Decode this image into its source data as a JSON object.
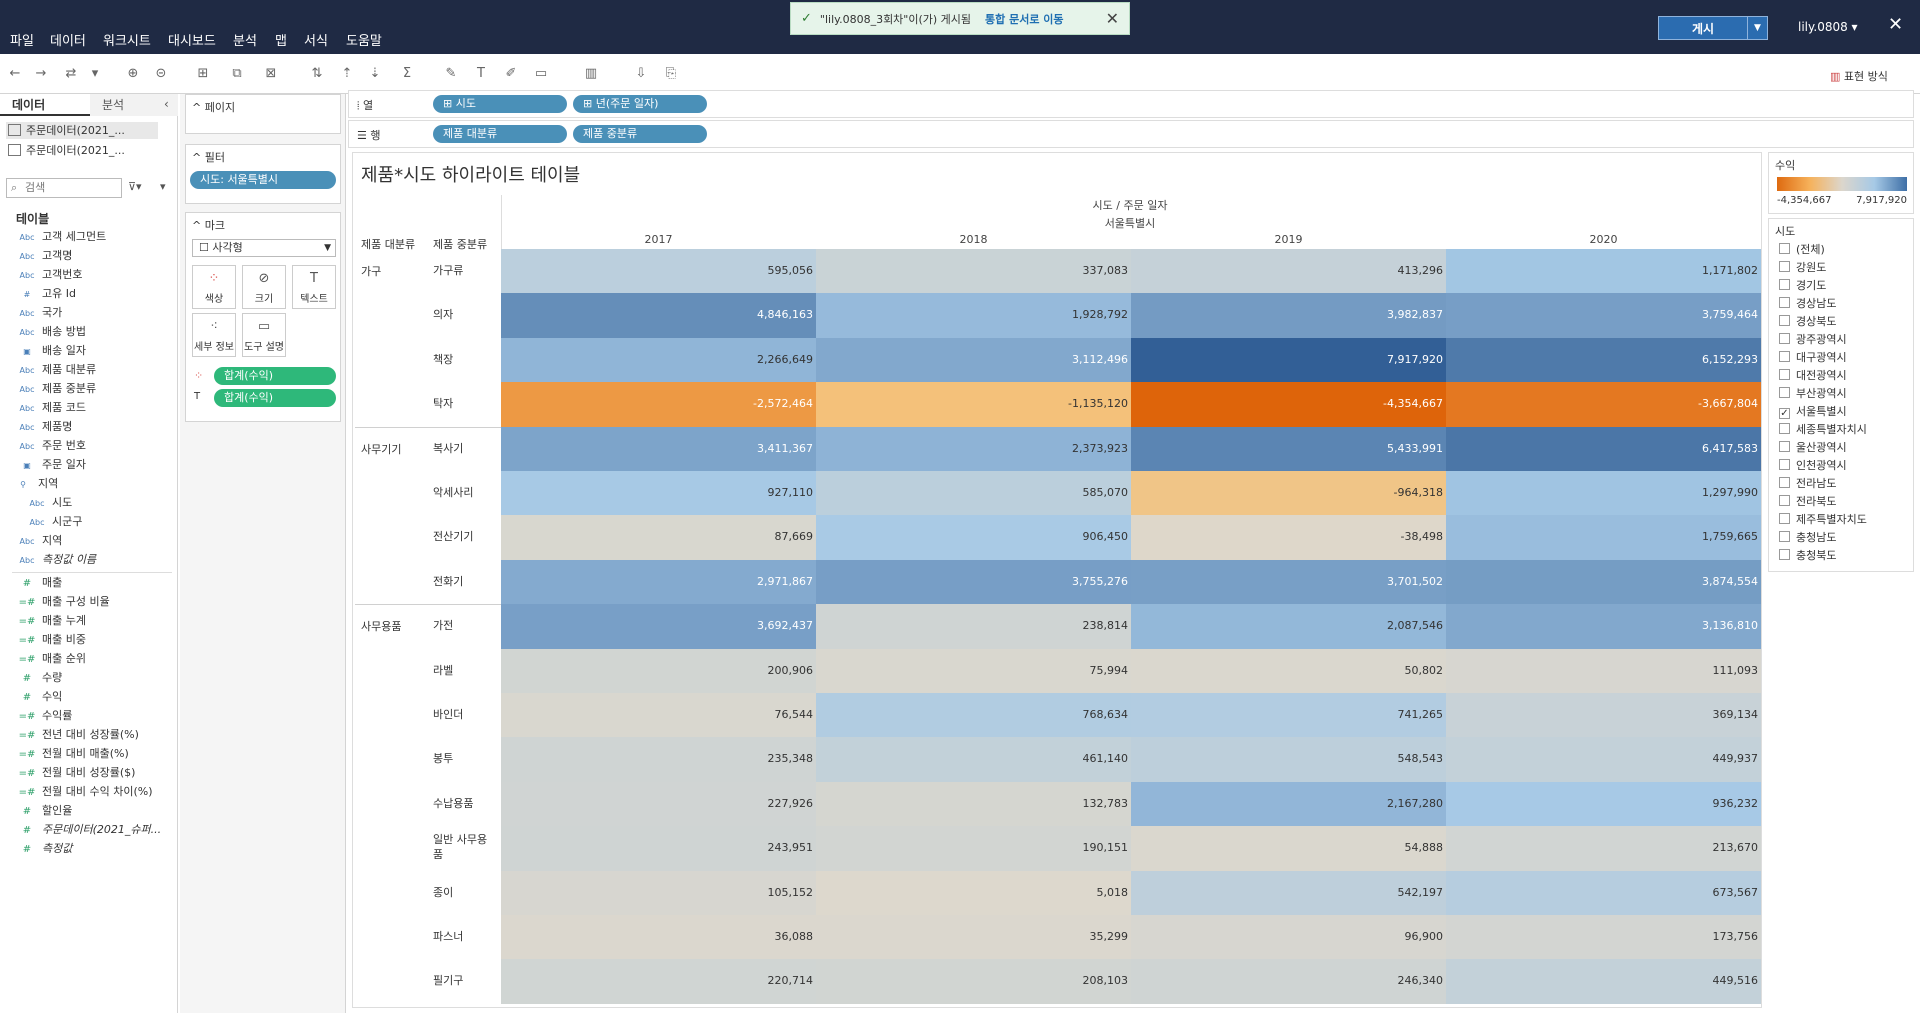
{
  "menus": [
    "파일",
    "데이터",
    "워크시트",
    "대시보드",
    "분석",
    "맵",
    "서식",
    "도움말"
  ],
  "toast": {
    "message": "\"lily.0808_3회차\"이(가) 게시됨",
    "link": "통합 문서로 이동"
  },
  "publish_label": "게시",
  "user_label": "lily.0808 ▾",
  "show_me_label": "표현 방식",
  "datapane": {
    "tab_data": "데이터",
    "tab_analysis": "분석",
    "sources": [
      "주문데이터(2021_...",
      "주문데이터(2021_..."
    ],
    "search_placeholder": "검색",
    "tables_label": "테이블",
    "dimensions": [
      {
        "type": "Abc",
        "name": "고객 세그먼트"
      },
      {
        "type": "Abc",
        "name": "고객명"
      },
      {
        "type": "Abc",
        "name": "고객번호"
      },
      {
        "type": "#",
        "name": "고유 Id"
      },
      {
        "type": "Abc",
        "name": "국가"
      },
      {
        "type": "Abc",
        "name": "배송 방법"
      },
      {
        "type": "▣",
        "name": "배송 일자"
      },
      {
        "type": "Abc",
        "name": "제품 대분류"
      },
      {
        "type": "Abc",
        "name": "제품 중분류"
      },
      {
        "type": "Abc",
        "name": "제품 코드"
      },
      {
        "type": "Abc",
        "name": "제품명"
      },
      {
        "type": "Abc",
        "name": "주문 번호"
      },
      {
        "type": "▣",
        "name": "주문 일자"
      },
      {
        "type": "⚲",
        "name": "지역"
      },
      {
        "type": "Abc",
        "name": "시도"
      },
      {
        "type": "Abc",
        "name": "시군구"
      },
      {
        "type": "Abc",
        "name": "지역"
      },
      {
        "type": "Abc",
        "name": "측정값 이름"
      }
    ],
    "measures": [
      {
        "type": "#",
        "name": "매출"
      },
      {
        "type": "=#",
        "name": "매출 구성 비율"
      },
      {
        "type": "=#",
        "name": "매출 누계"
      },
      {
        "type": "=#",
        "name": "매출 비중"
      },
      {
        "type": "=#",
        "name": "매출 순위"
      },
      {
        "type": "#",
        "name": "수량"
      },
      {
        "type": "#",
        "name": "수익"
      },
      {
        "type": "=#",
        "name": "수익률"
      },
      {
        "type": "=#",
        "name": "전년 대비 성장률(%)"
      },
      {
        "type": "=#",
        "name": "전월 대비 매출(%)"
      },
      {
        "type": "=#",
        "name": "전월 대비 성장률($)"
      },
      {
        "type": "=#",
        "name": "전월 대비 수익 차이(%)"
      },
      {
        "type": "#",
        "name": "할인율"
      },
      {
        "type": "#",
        "name": "주문데이터(2021_슈퍼..."
      },
      {
        "type": "#",
        "name": "측정값"
      }
    ]
  },
  "shelves": {
    "pages_label": "페이지",
    "filters_label": "필터",
    "filter_pill": "시도: 서울특별시",
    "marks_label": "마크",
    "mark_type": "사각형",
    "mark_buttons": [
      "색상",
      "크기",
      "텍스트",
      "세부 정보",
      "도구 설명"
    ],
    "mark_pills": [
      "합계(수익)",
      "합계(수익)"
    ],
    "columns_label": "열",
    "rows_label": "행",
    "column_pills": [
      "시도",
      "년(주문 일자)"
    ],
    "row_pills": [
      "제품 대분류",
      "제품 중분류"
    ]
  },
  "view": {
    "title": "제품*시도 하이라이트 테이블",
    "header_top": "시도 / 주문 일자",
    "header_region": "서울특별시",
    "row_header_1": "제품 대분류",
    "row_header_2": "제품 중분류",
    "years": [
      "2017",
      "2018",
      "2019",
      "2020"
    ]
  },
  "chart_data": {
    "type": "table",
    "title": "제품*시도 하이라이트 테이블",
    "columns": [
      "2017",
      "2018",
      "2019",
      "2020"
    ],
    "groups": [
      {
        "name": "가구",
        "rows": [
          {
            "sub": "가구류",
            "values": [
              595056,
              337083,
              413296,
              1171802
            ]
          },
          {
            "sub": "의자",
            "values": [
              4846163,
              1928792,
              3982837,
              3759464
            ]
          },
          {
            "sub": "책장",
            "values": [
              2266649,
              3112496,
              7917920,
              6152293
            ]
          },
          {
            "sub": "탁자",
            "values": [
              -2572464,
              -1135120,
              -4354667,
              -3667804
            ]
          }
        ]
      },
      {
        "name": "사무기기",
        "rows": [
          {
            "sub": "복사기",
            "values": [
              3411367,
              2373923,
              5433991,
              6417583
            ]
          },
          {
            "sub": "악세사리",
            "values": [
              927110,
              585070,
              -964318,
              1297990
            ]
          },
          {
            "sub": "전산기기",
            "values": [
              87669,
              906450,
              -38498,
              1759665
            ]
          },
          {
            "sub": "전화기",
            "values": [
              2971867,
              3755276,
              3701502,
              3874554
            ]
          }
        ]
      },
      {
        "name": "사무용품",
        "rows": [
          {
            "sub": "가전",
            "values": [
              3692437,
              238814,
              2087546,
              3136810
            ]
          },
          {
            "sub": "라벨",
            "values": [
              200906,
              75994,
              50802,
              111093
            ]
          },
          {
            "sub": "바인더",
            "values": [
              76544,
              768634,
              741265,
              369134
            ]
          },
          {
            "sub": "봉투",
            "values": [
              235348,
              461140,
              548543,
              449937
            ]
          },
          {
            "sub": "수납용품",
            "values": [
              227926,
              132783,
              2167280,
              936232
            ]
          },
          {
            "sub": "일반 사무용품",
            "values": [
              243951,
              190151,
              54888,
              213670
            ]
          },
          {
            "sub": "종이",
            "values": [
              105152,
              5018,
              542197,
              673567
            ]
          },
          {
            "sub": "파스너",
            "values": [
              36088,
              35299,
              96900,
              173756
            ]
          },
          {
            "sub": "필기구",
            "values": [
              220714,
              208103,
              246340,
              449516
            ]
          }
        ]
      }
    ],
    "color_min": -4354667,
    "color_max": 7917920
  },
  "legend": {
    "title": "수익",
    "min_label": "-4,354,667",
    "max_label": "7,917,920"
  },
  "filter_card": {
    "title": "시도",
    "items": [
      {
        "label": "(전체)",
        "checked": false
      },
      {
        "label": "강원도",
        "checked": false
      },
      {
        "label": "경기도",
        "checked": false
      },
      {
        "label": "경상남도",
        "checked": false
      },
      {
        "label": "경상북도",
        "checked": false
      },
      {
        "label": "광주광역시",
        "checked": false
      },
      {
        "label": "대구광역시",
        "checked": false
      },
      {
        "label": "대전광역시",
        "checked": false
      },
      {
        "label": "부산광역시",
        "checked": false
      },
      {
        "label": "서울특별시",
        "checked": true
      },
      {
        "label": "세종특별자치시",
        "checked": false
      },
      {
        "label": "울산광역시",
        "checked": false
      },
      {
        "label": "인천광역시",
        "checked": false
      },
      {
        "label": "전라남도",
        "checked": false
      },
      {
        "label": "전라북도",
        "checked": false
      },
      {
        "label": "제주특별자치도",
        "checked": false
      },
      {
        "label": "충청남도",
        "checked": false
      },
      {
        "label": "충청북도",
        "checked": false
      }
    ]
  }
}
